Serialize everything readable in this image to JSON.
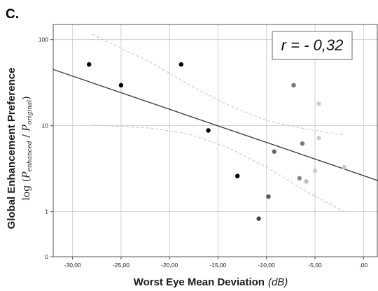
{
  "panel_label": "C.",
  "annotation": "r = - 0,32",
  "colors": {
    "fit_line": "#333333",
    "ci_band": "#c8c8c8",
    "grid": "#cfcfcf",
    "axis": "#555555"
  },
  "chart_data": {
    "type": "scatter",
    "xlabel_main": "Worst Eye Mean Deviation",
    "xlabel_unit": "(dB)",
    "ylabel_main": "Global Enhancement Preference",
    "ylabel_sub": "log (P_enhanced / P_original)",
    "y_scale": "log",
    "xlim": [
      -32,
      1.5
    ],
    "ylim_display": [
      0.3,
      150
    ],
    "x_ticks": [
      {
        "value": -30,
        "label": "-30,00"
      },
      {
        "value": -25,
        "label": "-25,00"
      },
      {
        "value": -20,
        "label": "-20,00"
      },
      {
        "value": -15,
        "label": "-15,00"
      },
      {
        "value": -10,
        "label": "-10,00"
      },
      {
        "value": -5,
        "label": "-5,00"
      },
      {
        "value": 0,
        "label": ",00"
      }
    ],
    "y_ticks": [
      {
        "value": 100,
        "label": "100"
      },
      {
        "value": 10,
        "label": "10"
      },
      {
        "value": 1,
        "label": "1"
      },
      {
        "value": 0.3,
        "label": "0"
      }
    ],
    "grid": true,
    "points": [
      {
        "x": -28.3,
        "y": 51.5,
        "color": "#000000"
      },
      {
        "x": -25.0,
        "y": 29.5,
        "color": "#000000"
      },
      {
        "x": -18.8,
        "y": 51.5,
        "color": "#000000"
      },
      {
        "x": -16.0,
        "y": 8.8,
        "color": "#000000"
      },
      {
        "x": -13.0,
        "y": 2.6,
        "color": "#000000"
      },
      {
        "x": -10.8,
        "y": 0.83,
        "color": "#444444"
      },
      {
        "x": -9.8,
        "y": 1.5,
        "color": "#555555"
      },
      {
        "x": -9.2,
        "y": 5.0,
        "color": "#666666"
      },
      {
        "x": -7.2,
        "y": 29.5,
        "color": "#777777"
      },
      {
        "x": -6.3,
        "y": 6.2,
        "color": "#777777"
      },
      {
        "x": -6.6,
        "y": 2.45,
        "color": "#888888"
      },
      {
        "x": -5.9,
        "y": 2.25,
        "color": "#bbbbbb"
      },
      {
        "x": -5.0,
        "y": 3.0,
        "color": "#cccccc"
      },
      {
        "x": -4.6,
        "y": 18.0,
        "color": "#cccccc"
      },
      {
        "x": -4.6,
        "y": 7.2,
        "color": "#cccccc"
      },
      {
        "x": -2.0,
        "y": 3.3,
        "color": "#cccccc"
      }
    ],
    "fit_line": {
      "x": [
        -32,
        1.5
      ],
      "y": [
        45,
        2.3
      ]
    },
    "ci_upper": {
      "x": [
        -28,
        -22,
        -18,
        -14,
        -10,
        -6,
        -2
      ],
      "y": [
        115,
        55,
        30,
        17.5,
        11.5,
        9.2,
        7.8
      ]
    },
    "ci_lower": {
      "x": [
        -28,
        -22,
        -18,
        -14,
        -10,
        -6,
        -2
      ],
      "y": [
        10.2,
        9.4,
        8.0,
        5.6,
        3.3,
        1.75,
        1.0
      ]
    }
  }
}
